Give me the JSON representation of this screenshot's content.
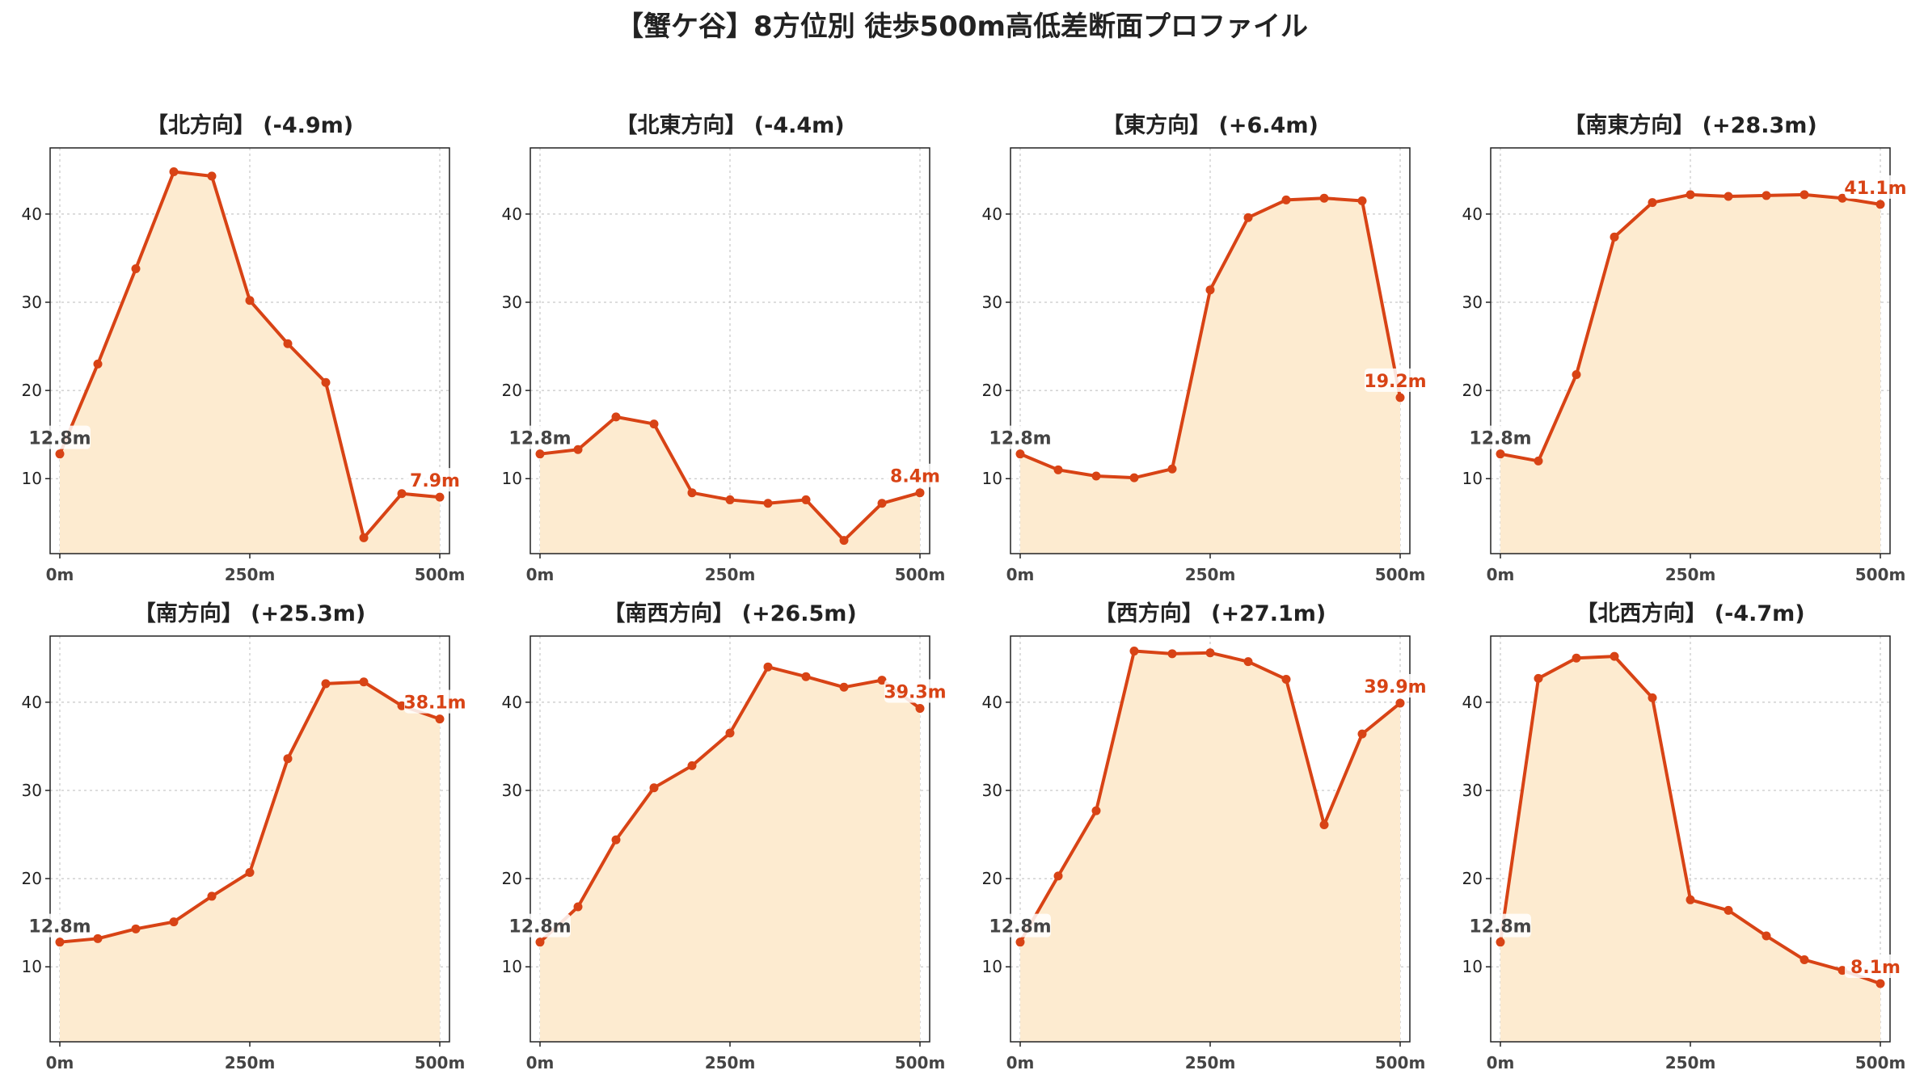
{
  "title": "【蟹ケ谷】8方位別 徒歩500m高低差断面プロファイル",
  "colors": {
    "line": "#d84315",
    "fill": "#fdebd0",
    "grid": "#bbbbbb",
    "start_text": "#444444",
    "end_text": "#d84315"
  },
  "chart_data": [
    {
      "type": "area",
      "title": "【北方向】 (-4.9m)",
      "x": [
        0,
        50,
        100,
        150,
        200,
        250,
        300,
        350,
        400,
        450,
        500
      ],
      "y": [
        12.8,
        23.0,
        33.8,
        44.8,
        44.3,
        30.2,
        25.3,
        20.9,
        3.3,
        8.3,
        7.9
      ],
      "x_tick_labels": [
        "0m",
        "250m",
        "500m"
      ],
      "y_ticks": [
        10,
        20,
        30,
        40
      ],
      "ylim": [
        1.5,
        47.5
      ],
      "start_label": "12.8m",
      "end_label": "7.9m",
      "grid": true
    },
    {
      "type": "area",
      "title": "【北東方向】 (-4.4m)",
      "x": [
        0,
        50,
        100,
        150,
        200,
        250,
        300,
        350,
        400,
        450,
        500
      ],
      "y": [
        12.8,
        13.3,
        17.0,
        16.2,
        8.4,
        7.6,
        7.2,
        7.6,
        3.0,
        7.2,
        8.4
      ],
      "x_tick_labels": [
        "0m",
        "250m",
        "500m"
      ],
      "y_ticks": [
        10,
        20,
        30,
        40
      ],
      "ylim": [
        1.5,
        47.5
      ],
      "start_label": "12.8m",
      "end_label": "8.4m",
      "grid": true
    },
    {
      "type": "area",
      "title": "【東方向】 (+6.4m)",
      "x": [
        0,
        50,
        100,
        150,
        200,
        250,
        300,
        350,
        400,
        450,
        500
      ],
      "y": [
        12.8,
        11.0,
        10.3,
        10.1,
        11.1,
        31.4,
        39.6,
        41.6,
        41.8,
        41.5,
        19.2
      ],
      "x_tick_labels": [
        "0m",
        "250m",
        "500m"
      ],
      "y_ticks": [
        10,
        20,
        30,
        40
      ],
      "ylim": [
        1.5,
        47.5
      ],
      "start_label": "12.8m",
      "end_label": "19.2m",
      "grid": true
    },
    {
      "type": "area",
      "title": "【南東方向】 (+28.3m)",
      "x": [
        0,
        50,
        100,
        150,
        200,
        250,
        300,
        350,
        400,
        450,
        500
      ],
      "y": [
        12.8,
        12.0,
        21.8,
        37.4,
        41.3,
        42.2,
        42.0,
        42.1,
        42.2,
        41.8,
        41.1
      ],
      "x_tick_labels": [
        "0m",
        "250m",
        "500m"
      ],
      "y_ticks": [
        10,
        20,
        30,
        40
      ],
      "ylim": [
        1.5,
        47.5
      ],
      "start_label": "12.8m",
      "end_label": "41.1m",
      "grid": true
    },
    {
      "type": "area",
      "title": "【南方向】 (+25.3m)",
      "x": [
        0,
        50,
        100,
        150,
        200,
        250,
        300,
        350,
        400,
        450,
        500
      ],
      "y": [
        12.8,
        13.2,
        14.3,
        15.1,
        18.0,
        20.7,
        33.6,
        42.1,
        42.3,
        39.6,
        38.1
      ],
      "x_tick_labels": [
        "0m",
        "250m",
        "500m"
      ],
      "y_ticks": [
        10,
        20,
        30,
        40
      ],
      "ylim": [
        1.5,
        47.5
      ],
      "start_label": "12.8m",
      "end_label": "38.1m",
      "grid": true
    },
    {
      "type": "area",
      "title": "【南西方向】 (+26.5m)",
      "x": [
        0,
        50,
        100,
        150,
        200,
        250,
        300,
        350,
        400,
        450,
        500
      ],
      "y": [
        12.8,
        16.8,
        24.4,
        30.3,
        32.8,
        36.5,
        44.0,
        42.9,
        41.7,
        42.5,
        39.3
      ],
      "x_tick_labels": [
        "0m",
        "250m",
        "500m"
      ],
      "y_ticks": [
        10,
        20,
        30,
        40
      ],
      "ylim": [
        1.5,
        47.5
      ],
      "start_label": "12.8m",
      "end_label": "39.3m",
      "grid": true
    },
    {
      "type": "area",
      "title": "【西方向】 (+27.1m)",
      "x": [
        0,
        50,
        100,
        150,
        200,
        250,
        300,
        350,
        400,
        450,
        500
      ],
      "y": [
        12.8,
        20.3,
        27.7,
        45.8,
        45.5,
        45.6,
        44.6,
        42.6,
        26.1,
        36.4,
        39.9
      ],
      "x_tick_labels": [
        "0m",
        "250m",
        "500m"
      ],
      "y_ticks": [
        10,
        20,
        30,
        40
      ],
      "ylim": [
        1.5,
        47.5
      ],
      "start_label": "12.8m",
      "end_label": "39.9m",
      "grid": true
    },
    {
      "type": "area",
      "title": "【北西方向】 (-4.7m)",
      "x": [
        0,
        50,
        100,
        150,
        200,
        250,
        300,
        350,
        400,
        450,
        500
      ],
      "y": [
        12.8,
        42.7,
        45.0,
        45.2,
        40.5,
        17.6,
        16.4,
        13.5,
        10.8,
        9.6,
        8.1
      ],
      "x_tick_labels": [
        "0m",
        "250m",
        "500m"
      ],
      "y_ticks": [
        10,
        20,
        30,
        40
      ],
      "ylim": [
        1.5,
        47.5
      ],
      "start_label": "12.8m",
      "end_label": "8.1m",
      "grid": true
    }
  ]
}
